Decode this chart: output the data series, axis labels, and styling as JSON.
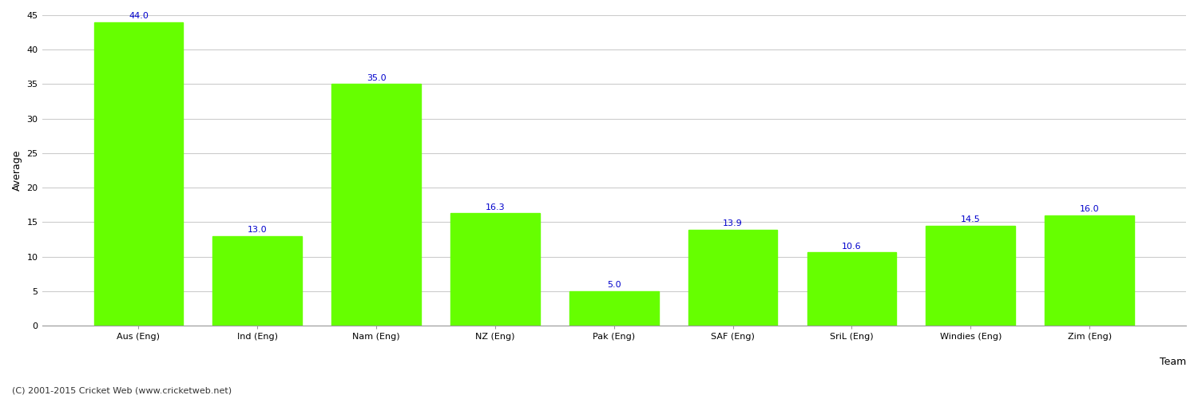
{
  "categories": [
    "Aus (Eng)",
    "Ind (Eng)",
    "Nam (Eng)",
    "NZ (Eng)",
    "Pak (Eng)",
    "SAF (Eng)",
    "SriL (Eng)",
    "Windies (Eng)",
    "Zim (Eng)"
  ],
  "values": [
    44.0,
    13.0,
    35.0,
    16.3,
    5.0,
    13.9,
    10.6,
    14.5,
    16.0
  ],
  "bar_color": "#66ff00",
  "bar_edge_color": "#66ff00",
  "label_color": "#0000cc",
  "xlabel": "Team",
  "ylabel": "Average",
  "ylim": [
    0,
    45
  ],
  "yticks": [
    0,
    5,
    10,
    15,
    20,
    25,
    30,
    35,
    40,
    45
  ],
  "grid_color": "#cccccc",
  "background_color": "#ffffff",
  "label_fontsize": 8,
  "axis_label_fontsize": 9,
  "tick_fontsize": 8,
  "footer_text": "(C) 2001-2015 Cricket Web (www.cricketweb.net)",
  "footer_fontsize": 8,
  "footer_color": "#333333",
  "bar_width": 0.75
}
